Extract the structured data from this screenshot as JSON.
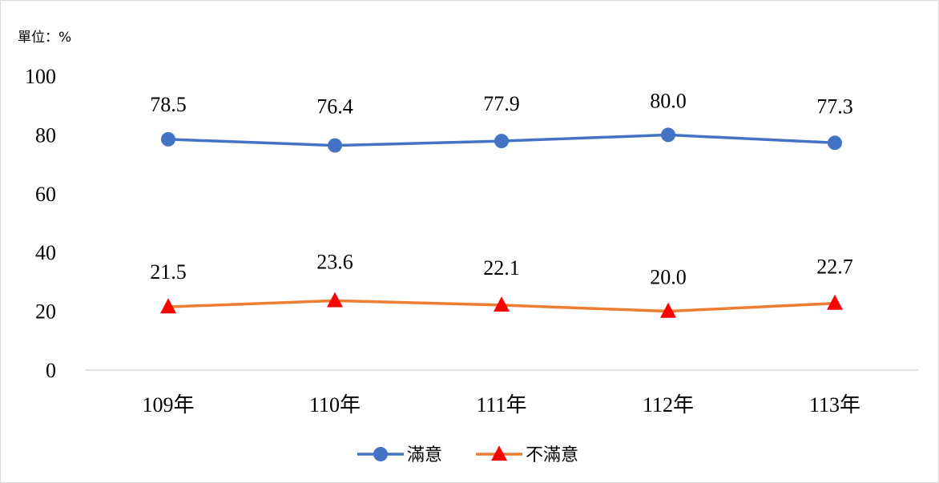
{
  "chart_data": {
    "type": "line",
    "unit_label": "單位：%",
    "x": [
      "109年",
      "110年",
      "111年",
      "112年",
      "113年"
    ],
    "ylim": [
      0,
      100
    ],
    "yticks": [
      0,
      20,
      40,
      60,
      80,
      100
    ],
    "grid": false,
    "legend_position": "bottom",
    "series": [
      {
        "name": "滿意",
        "values": [
          78.5,
          76.4,
          77.9,
          80.0,
          77.3
        ],
        "labels": [
          "78.5",
          "76.4",
          "77.9",
          "80.0",
          "77.3"
        ],
        "color": "#4472C4",
        "marker": "circle",
        "marker_color": "#4472C4"
      },
      {
        "name": "不滿意",
        "values": [
          21.5,
          23.6,
          22.1,
          20.0,
          22.7
        ],
        "labels": [
          "21.5",
          "23.6",
          "22.1",
          "20.0",
          "22.7"
        ],
        "color": "#ED7D31",
        "marker": "triangle",
        "marker_color": "#FF0000"
      }
    ]
  }
}
